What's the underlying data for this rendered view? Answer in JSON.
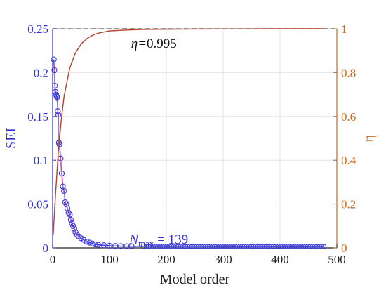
{
  "chart_data": {
    "type": "line",
    "xlabel": "Model order",
    "ylabel_left": "SEI",
    "ylabel_right": "η",
    "xlim": [
      0,
      500
    ],
    "ylim_left": [
      0,
      0.25
    ],
    "ylim_right": [
      0,
      1
    ],
    "x_ticks": [
      "0",
      "100",
      "200",
      "300",
      "400",
      "500"
    ],
    "y_left_ticks": [
      "0",
      "0.05",
      "0.1",
      "0.15",
      "0.2",
      "0.25"
    ],
    "y_right_ticks": [
      "0",
      "0.2",
      "0.4",
      "0.6",
      "0.8",
      "1"
    ],
    "grid": true,
    "colors": {
      "sei": "#3b3bdc",
      "eta": "#b5422a",
      "fit": "#e060c0",
      "left_axis": "#2e2ee0",
      "right_axis": "#c8691a",
      "reference": "#777777"
    },
    "annotations": {
      "eta_value": "0.995",
      "eta_prefix": "η=",
      "nmax_var": "N",
      "nmax_sub": "max",
      "nmax_value": " = 139"
    },
    "series": [
      {
        "axis": "left",
        "marker": "circle",
        "x": [
          2,
          3,
          4,
          5,
          6,
          7,
          8,
          9,
          10,
          11,
          12,
          14,
          16,
          18,
          20,
          22,
          24,
          26,
          28,
          30,
          32,
          34,
          36,
          38,
          40,
          43,
          46,
          50,
          55,
          60,
          65,
          70,
          75,
          80,
          90,
          100,
          110,
          120,
          130,
          139,
          160,
          200,
          250,
          300,
          350,
          400,
          450,
          478
        ],
        "values": [
          0.215,
          0.203,
          0.185,
          0.178,
          0.175,
          0.173,
          0.172,
          0.156,
          0.152,
          0.12,
          0.118,
          0.102,
          0.085,
          0.07,
          0.065,
          0.052,
          0.05,
          0.045,
          0.04,
          0.038,
          0.032,
          0.028,
          0.025,
          0.022,
          0.018,
          0.015,
          0.013,
          0.011,
          0.009,
          0.007,
          0.006,
          0.005,
          0.004,
          0.0035,
          0.003,
          0.0025,
          0.0022,
          0.002,
          0.0019,
          0.0018,
          0.0017,
          0.0016,
          0.0016,
          0.0015,
          0.0015,
          0.0015,
          0.0015,
          0.0015
        ]
      },
      {
        "axis": "right",
        "x": [
          1,
          5,
          10,
          15,
          20,
          30,
          40,
          50,
          60,
          70,
          80,
          90,
          100,
          120,
          139,
          160,
          200,
          300,
          400,
          478
        ],
        "values": [
          0.06,
          0.24,
          0.44,
          0.58,
          0.69,
          0.82,
          0.89,
          0.93,
          0.955,
          0.97,
          0.98,
          0.985,
          0.99,
          0.993,
          0.995,
          0.997,
          0.998,
          0.999,
          1.0,
          1.0
        ]
      }
    ]
  }
}
